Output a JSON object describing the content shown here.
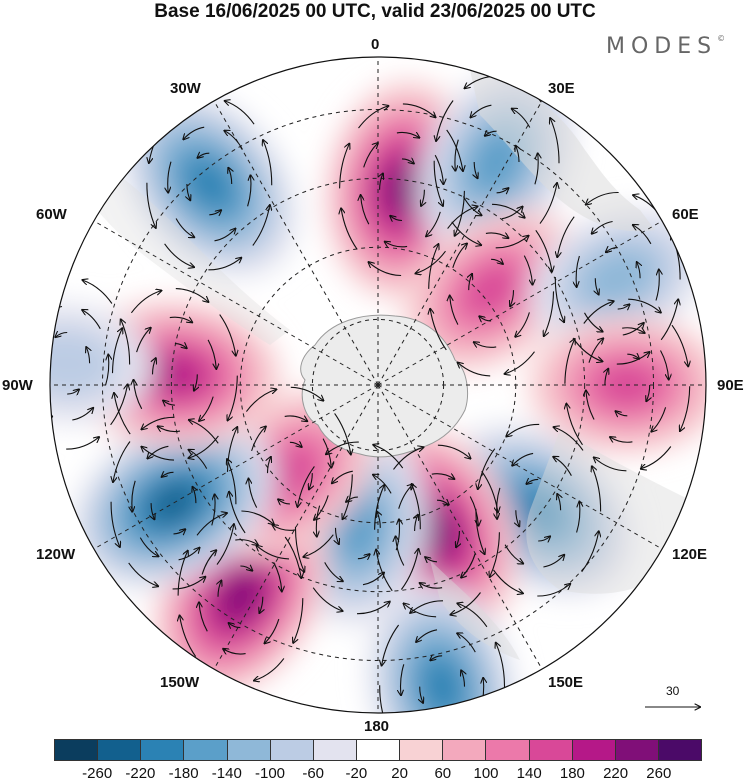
{
  "title": "Base 16/06/2025 00 UTC, valid 23/06/2025 00 UTC",
  "brand": "MODES",
  "brand_mark": "©",
  "longitude_labels": {
    "lon0": "0",
    "lon30e": "30E",
    "lon60e": "60E",
    "lon90e": "90E",
    "lon120e": "120E",
    "lon150e": "150E",
    "lon180": "180",
    "lon150w": "150W",
    "lon120w": "120W",
    "lon90w": "90W",
    "lon60w": "60W",
    "lon30w": "30W"
  },
  "reference_vector": {
    "value": "30"
  },
  "colorbar": {
    "ticks": [
      "-260",
      "-220",
      "-180",
      "-140",
      "-100",
      "-60",
      "-20",
      "20",
      "60",
      "100",
      "140",
      "180",
      "220",
      "260"
    ],
    "colors": [
      "#0b3d5e",
      "#12608e",
      "#2b82b4",
      "#5b9fc9",
      "#8fb8d8",
      "#bcccE4",
      "#e3e3ef",
      "#ffffff",
      "#f8d2d4",
      "#f3a9bd",
      "#ec79aa",
      "#d94898",
      "#b51888",
      "#800f78",
      "#4b0a68"
    ]
  },
  "map": {
    "projection": "south-polar-stereographic",
    "anomalies": [
      {
        "lon": 7,
        "lat_frac": 0.6,
        "value": 230
      },
      {
        "lon": -40,
        "lat_frac": 0.8,
        "value": -200
      },
      {
        "lon": 28,
        "lat_frac": 0.77,
        "value": -170
      },
      {
        "lon": 50,
        "lat_frac": 0.45,
        "value": 150
      },
      {
        "lon": 66,
        "lat_frac": 0.8,
        "value": -110
      },
      {
        "lon": 90,
        "lat_frac": 0.76,
        "value": 160
      },
      {
        "lon": 128,
        "lat_frac": 0.62,
        "value": -190
      },
      {
        "lon": 158,
        "lat_frac": 0.48,
        "value": 230
      },
      {
        "lon": 168,
        "lat_frac": 0.94,
        "value": -190
      },
      {
        "lon": 188,
        "lat_frac": 0.44,
        "value": -150
      },
      {
        "lon": 213,
        "lat_frac": 0.77,
        "value": 230
      },
      {
        "lon": 225,
        "lat_frac": 0.38,
        "value": 150
      },
      {
        "lon": 240,
        "lat_frac": 0.72,
        "value": -230
      },
      {
        "lon": 273,
        "lat_frac": 0.62,
        "value": 210
      },
      {
        "lon": 274,
        "lat_frac": 0.95,
        "value": -60
      }
    ]
  }
}
